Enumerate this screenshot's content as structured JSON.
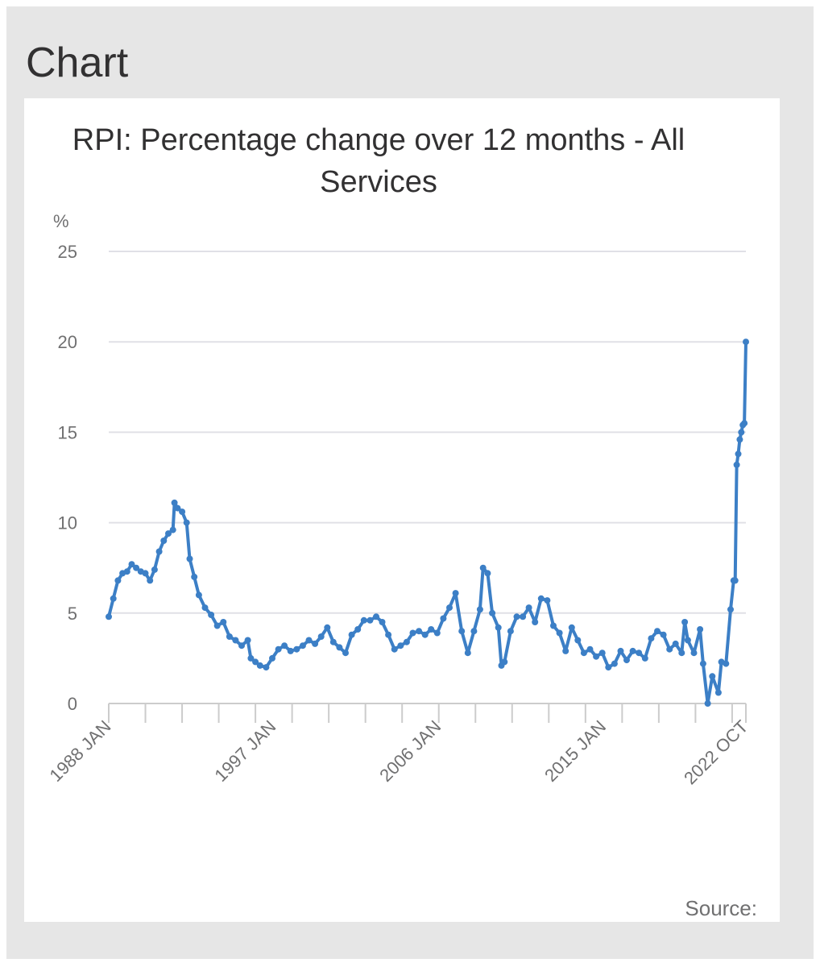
{
  "panel": {
    "heading": "Chart",
    "source_label": "Source:"
  },
  "colors": {
    "series": "#3c7fc6",
    "grid": "#e0e0e6",
    "panel_bg": "#e6e6e6",
    "axis_text": "#707071",
    "title_text": "#323132"
  },
  "chart_data": {
    "type": "line",
    "title": "RPI: Percentage change over 12 months - All Services",
    "ylabel": "%",
    "xlabel": "",
    "ylim": [
      0,
      25
    ],
    "yticks": [
      0,
      5,
      10,
      15,
      20,
      25
    ],
    "xticks": [
      "1988 JAN",
      "1997 JAN",
      "2006 JAN",
      "2015 JAN",
      "2022 OCT"
    ],
    "grid": true,
    "legend": "none",
    "series": [
      {
        "values_by_month_from": "1988 JAN",
        "points": [
          [
            "1988 JAN",
            4.8
          ],
          [
            "1988 APR",
            5.8
          ],
          [
            "1988 JUL",
            6.8
          ],
          [
            "1988 OCT",
            7.2
          ],
          [
            "1989 JAN",
            7.3
          ],
          [
            "1989 APR",
            7.7
          ],
          [
            "1989 JUL",
            7.5
          ],
          [
            "1989 OCT",
            7.3
          ],
          [
            "1990 JAN",
            7.2
          ],
          [
            "1990 APR",
            6.8
          ],
          [
            "1990 JUL",
            7.4
          ],
          [
            "1990 OCT",
            8.4
          ],
          [
            "1991 JAN",
            9.0
          ],
          [
            "1991 APR",
            9.4
          ],
          [
            "1991 JUL",
            9.6
          ],
          [
            "1991 AUG",
            11.1
          ],
          [
            "1991 OCT",
            10.8
          ],
          [
            "1992 JAN",
            10.6
          ],
          [
            "1992 APR",
            10.0
          ],
          [
            "1992 JUN",
            8.0
          ],
          [
            "1992 SEP",
            7.0
          ],
          [
            "1992 DEC",
            6.0
          ],
          [
            "1993 APR",
            5.3
          ],
          [
            "1993 AUG",
            4.9
          ],
          [
            "1993 DEC",
            4.3
          ],
          [
            "1994 APR",
            4.5
          ],
          [
            "1994 AUG",
            3.7
          ],
          [
            "1994 DEC",
            3.5
          ],
          [
            "1995 APR",
            3.2
          ],
          [
            "1995 AUG",
            3.5
          ],
          [
            "1995 OCT",
            2.5
          ],
          [
            "1996 JAN",
            2.3
          ],
          [
            "1996 APR",
            2.1
          ],
          [
            "1996 AUG",
            2.0
          ],
          [
            "1996 DEC",
            2.5
          ],
          [
            "1997 APR",
            3.0
          ],
          [
            "1997 AUG",
            3.2
          ],
          [
            "1997 DEC",
            2.9
          ],
          [
            "1998 APR",
            3.0
          ],
          [
            "1998 AUG",
            3.2
          ],
          [
            "1998 DEC",
            3.5
          ],
          [
            "1999 APR",
            3.3
          ],
          [
            "1999 AUG",
            3.7
          ],
          [
            "1999 DEC",
            4.2
          ],
          [
            "2000 APR",
            3.4
          ],
          [
            "2000 AUG",
            3.1
          ],
          [
            "2000 DEC",
            2.8
          ],
          [
            "2001 APR",
            3.8
          ],
          [
            "2001 AUG",
            4.1
          ],
          [
            "2001 DEC",
            4.6
          ],
          [
            "2002 APR",
            4.6
          ],
          [
            "2002 AUG",
            4.8
          ],
          [
            "2002 DEC",
            4.5
          ],
          [
            "2003 APR",
            3.8
          ],
          [
            "2003 AUG",
            3.0
          ],
          [
            "2003 DEC",
            3.2
          ],
          [
            "2004 APR",
            3.4
          ],
          [
            "2004 AUG",
            3.9
          ],
          [
            "2004 DEC",
            4.0
          ],
          [
            "2005 APR",
            3.8
          ],
          [
            "2005 AUG",
            4.1
          ],
          [
            "2005 DEC",
            3.9
          ],
          [
            "2006 APR",
            4.7
          ],
          [
            "2006 AUG",
            5.3
          ],
          [
            "2006 DEC",
            6.1
          ],
          [
            "2007 APR",
            4.0
          ],
          [
            "2007 AUG",
            2.8
          ],
          [
            "2007 DEC",
            4.0
          ],
          [
            "2008 APR",
            5.2
          ],
          [
            "2008 JUN",
            7.5
          ],
          [
            "2008 SEP",
            7.2
          ],
          [
            "2008 DEC",
            5.0
          ],
          [
            "2009 APR",
            4.2
          ],
          [
            "2009 JUN",
            2.1
          ],
          [
            "2009 AUG",
            2.3
          ],
          [
            "2009 DEC",
            4.0
          ],
          [
            "2010 APR",
            4.8
          ],
          [
            "2010 AUG",
            4.8
          ],
          [
            "2010 DEC",
            5.3
          ],
          [
            "2011 APR",
            4.5
          ],
          [
            "2011 AUG",
            5.8
          ],
          [
            "2011 DEC",
            5.7
          ],
          [
            "2012 APR",
            4.3
          ],
          [
            "2012 AUG",
            3.9
          ],
          [
            "2012 DEC",
            2.9
          ],
          [
            "2013 APR",
            4.2
          ],
          [
            "2013 AUG",
            3.5
          ],
          [
            "2013 DEC",
            2.8
          ],
          [
            "2014 APR",
            3.0
          ],
          [
            "2014 AUG",
            2.6
          ],
          [
            "2014 DEC",
            2.8
          ],
          [
            "2015 APR",
            2.0
          ],
          [
            "2015 AUG",
            2.2
          ],
          [
            "2015 DEC",
            2.9
          ],
          [
            "2016 APR",
            2.4
          ],
          [
            "2016 AUG",
            2.9
          ],
          [
            "2016 DEC",
            2.8
          ],
          [
            "2017 APR",
            2.5
          ],
          [
            "2017 AUG",
            3.6
          ],
          [
            "2017 DEC",
            4.0
          ],
          [
            "2018 APR",
            3.8
          ],
          [
            "2018 AUG",
            3.0
          ],
          [
            "2018 DEC",
            3.3
          ],
          [
            "2019 APR",
            2.8
          ],
          [
            "2019 JUN",
            4.5
          ],
          [
            "2019 AUG",
            3.5
          ],
          [
            "2019 DEC",
            2.8
          ],
          [
            "2020 APR",
            4.1
          ],
          [
            "2020 JUN",
            2.2
          ],
          [
            "2020 SEP",
            0.0
          ],
          [
            "2020 DEC",
            1.5
          ],
          [
            "2021 APR",
            0.6
          ],
          [
            "2021 JUN",
            2.3
          ],
          [
            "2021 SEP",
            2.2
          ],
          [
            "2021 DEC",
            5.2
          ],
          [
            "2022 FEB",
            6.8
          ],
          [
            "2022 MAR",
            6.8
          ],
          [
            "2022 APR",
            13.2
          ],
          [
            "2022 MAY",
            13.8
          ],
          [
            "2022 JUN",
            14.6
          ],
          [
            "2022 JUL",
            15.0
          ],
          [
            "2022 AUG",
            15.4
          ],
          [
            "2022 SEP",
            15.5
          ],
          [
            "2022 OCT",
            20.0
          ]
        ]
      }
    ]
  }
}
